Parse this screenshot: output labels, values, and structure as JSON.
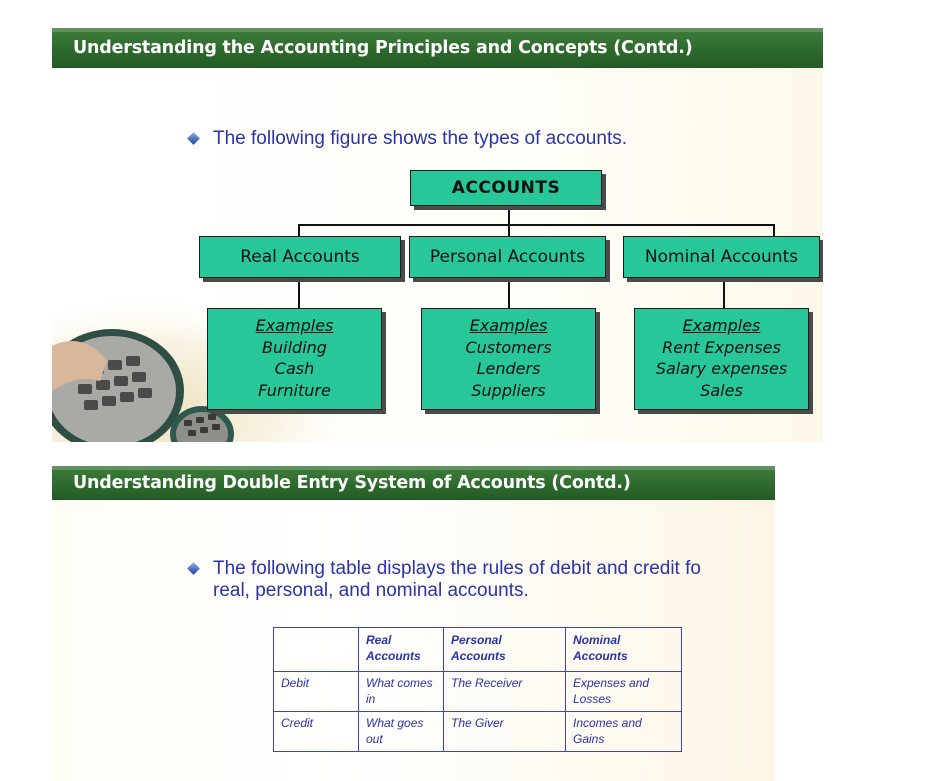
{
  "slide1": {
    "title": "Understanding the Accounting Principles and Concepts (Contd.)",
    "bullet": "The following figure shows the types of accounts.",
    "tree": {
      "root": "ACCOUNTS",
      "categories": [
        {
          "label": "Real Accounts",
          "examples_heading": "Examples",
          "examples": [
            "Building",
            "Cash",
            "Furniture"
          ]
        },
        {
          "label": "Personal Accounts",
          "examples_heading": "Examples",
          "examples": [
            "Customers",
            "Lenders",
            "Suppliers"
          ]
        },
        {
          "label": "Nominal Accounts",
          "examples_heading": "Examples",
          "examples": [
            "Rent Expenses",
            "Salary expenses",
            "Sales"
          ]
        }
      ]
    },
    "box_color": "#27c79a"
  },
  "slide2": {
    "title": "Understanding Double Entry System of Accounts (Contd.)",
    "bullet_line1": "The following table displays the rules of debit and credit fo",
    "bullet_line2": "real, personal, and nominal accounts.",
    "table": {
      "headers": [
        "",
        "Real Accounts",
        "Personal Accounts",
        "Nominal Accounts"
      ],
      "rows": [
        [
          "Debit",
          "What comes in",
          "The Receiver",
          "Expenses and Losses"
        ],
        [
          "Credit",
          "What goes out",
          "The Giver",
          "Incomes and Gains"
        ]
      ]
    }
  },
  "colors": {
    "title_bar": "#2d6a2d",
    "bullet_text": "#2a33a8"
  }
}
